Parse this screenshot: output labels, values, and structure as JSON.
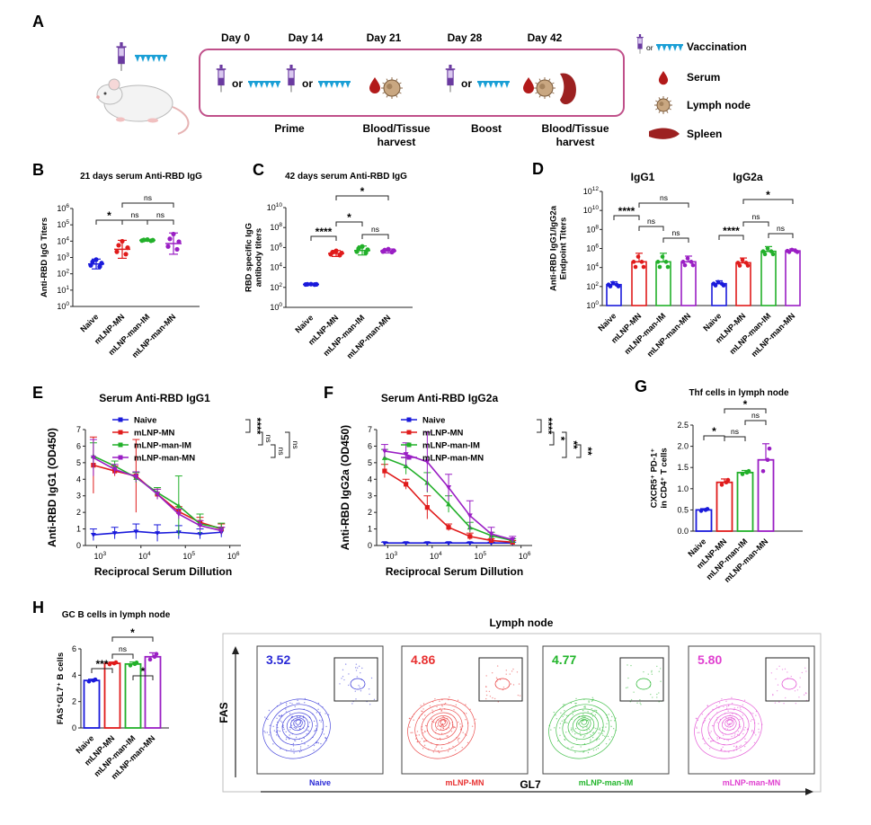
{
  "colors": {
    "naive": "#1a1adb",
    "mn": "#e01b1b",
    "im": "#22b02a",
    "man_mn": "#9a1ec4",
    "box": "#c0508a",
    "syringe": "#6a3aa0",
    "patch": "#1a9fd6",
    "blood": "#b21a1a",
    "spleen": "#9c2121",
    "node": "#a07850"
  },
  "panelA": {
    "label": "A",
    "days": [
      "Day 0",
      "Day 14",
      "Day 21",
      "Day 28",
      "Day 42"
    ],
    "or_text": "or",
    "steps": [
      "Prime",
      "Blood/Tissue",
      "harvest",
      "Boost",
      "Blood/Tissue",
      "harvest"
    ],
    "legend": [
      {
        "icon": "syringe-patch",
        "or_text": "or",
        "label": "Vaccination"
      },
      {
        "icon": "blood-drop",
        "label": "Serum"
      },
      {
        "icon": "lymph-node",
        "label": "Lymph node"
      },
      {
        "icon": "spleen",
        "label": "Spleen"
      }
    ]
  },
  "groups": [
    "Naive",
    "mLNP-MN",
    "mLNP-man-IM",
    "mLNP-man-MN"
  ],
  "chart_data": [
    {
      "panel": "B",
      "type": "scatter",
      "title": "21 days serum Anti-RBD IgG",
      "ylabel": "Anti-RBD IgG Titers",
      "yscale": "log",
      "ylim_exp": [
        0,
        6
      ],
      "categories": [
        "Naive",
        "mLNP-MN",
        "mLNP-man-IM",
        "mLNP-man-MN"
      ],
      "mean_exp": [
        2.6,
        3.5,
        4.05,
        3.85
      ],
      "err_exp": [
        0.3,
        0.55,
        0.05,
        0.65
      ],
      "significance": [
        {
          "pair": [
            1,
            2
          ],
          "label": "*"
        },
        {
          "pair": [
            2,
            3
          ],
          "label": "ns"
        },
        {
          "pair": [
            3,
            4
          ],
          "label": "ns"
        },
        {
          "pair": [
            2,
            4
          ],
          "label": "ns"
        }
      ]
    },
    {
      "panel": "C",
      "type": "scatter",
      "title": "42 days serum Anti-RBD IgG",
      "ylabel": [
        "RBD specific IgG",
        "antibody titers"
      ],
      "yscale": "log",
      "ylim_exp": [
        0,
        10
      ],
      "categories": [
        "Naive",
        "mLNP-MN",
        "mLNP-man-IM",
        "mLNP-man-MN"
      ],
      "mean_exp": [
        2.3,
        5.4,
        5.7,
        5.65
      ],
      "err_exp": [
        0.03,
        0.3,
        0.45,
        0.2
      ],
      "significance": [
        {
          "pair": [
            1,
            2
          ],
          "label": "****"
        },
        {
          "pair": [
            2,
            3
          ],
          "label": "*"
        },
        {
          "pair": [
            3,
            4
          ],
          "label": "ns"
        },
        {
          "pair": [
            2,
            4
          ],
          "label": "*"
        }
      ]
    },
    {
      "panel": "D",
      "type": "bar",
      "ylabel": [
        "Anti-RBD IgG1/IgG2a",
        "Endpoint Titers"
      ],
      "yscale": "log",
      "ylim_exp": [
        0,
        12
      ],
      "groups_sets": [
        "IgG1",
        "IgG2a"
      ],
      "categories": [
        "Naive",
        "mLNP-MN",
        "mLNP-man-IM",
        "mLNP-man-MN"
      ],
      "series": [
        {
          "name": "IgG1",
          "mean_exp": [
            2.2,
            4.6,
            4.6,
            4.6
          ],
          "err_exp": [
            0.3,
            0.9,
            0.9,
            0.6
          ]
        },
        {
          "name": "IgG2a",
          "mean_exp": [
            2.3,
            4.5,
            5.7,
            5.75
          ],
          "err_exp": [
            0.3,
            0.5,
            0.5,
            0.2
          ]
        }
      ],
      "significance": [
        {
          "set": 0,
          "pair": [
            1,
            2
          ],
          "label": "****"
        },
        {
          "set": 0,
          "pair": [
            2,
            3
          ],
          "label": "ns"
        },
        {
          "set": 0,
          "pair": [
            3,
            4
          ],
          "label": "ns"
        },
        {
          "set": 0,
          "pair": [
            2,
            4
          ],
          "label": "ns"
        },
        {
          "set": 1,
          "pair": [
            1,
            2
          ],
          "label": "****"
        },
        {
          "set": 1,
          "pair": [
            2,
            3
          ],
          "label": "ns"
        },
        {
          "set": 1,
          "pair": [
            3,
            4
          ],
          "label": "ns"
        },
        {
          "set": 1,
          "pair": [
            2,
            4
          ],
          "label": "*"
        }
      ]
    },
    {
      "panel": "E",
      "type": "line",
      "title": "Serum Anti-RBD IgG1",
      "xlabel": "Reciprocal Serum Dillution",
      "ylabel": "Anti-RBD IgG1 (OD450)",
      "xscale": "log",
      "xlim_exp": [
        2.75,
        6.25
      ],
      "ylim": [
        0,
        7
      ],
      "x_exp": [
        2.93,
        3.41,
        3.89,
        4.37,
        4.85,
        5.33,
        5.81
      ],
      "series": [
        {
          "name": "Naive",
          "y": [
            0.65,
            0.75,
            0.85,
            0.75,
            0.8,
            0.7,
            0.8
          ],
          "err": [
            0.35,
            0.35,
            0.45,
            0.5,
            0.4,
            0.3,
            0.3
          ]
        },
        {
          "name": "mLNP-MN",
          "y": [
            4.85,
            4.5,
            4.2,
            3.1,
            2.05,
            1.4,
            1.0
          ],
          "err": [
            1.7,
            0.3,
            2.2,
            0.3,
            0.3,
            0.3,
            0.3
          ]
        },
        {
          "name": "mLNP-man-IM",
          "y": [
            5.4,
            4.8,
            4.1,
            3.2,
            2.4,
            1.3,
            1.05
          ],
          "err": [
            0.8,
            0.3,
            0.3,
            0.3,
            1.8,
            0.6,
            0.3
          ]
        },
        {
          "name": "mLNP-man-MN",
          "y": [
            5.3,
            4.6,
            4.15,
            3.1,
            1.9,
            1.2,
            0.9
          ],
          "err": [
            1.1,
            0.3,
            0.3,
            0.3,
            0.3,
            0.3,
            0.2
          ]
        }
      ],
      "significance": [
        {
          "pair": [
            0,
            1
          ],
          "label": "****"
        },
        {
          "pair": [
            1,
            2
          ],
          "label": "ns"
        },
        {
          "pair": [
            2,
            3
          ],
          "label": "ns"
        },
        {
          "pair": [
            1,
            3
          ],
          "label": "ns"
        }
      ]
    },
    {
      "panel": "F",
      "type": "line",
      "title": "Serum Anti-RBD IgG2a",
      "xlabel": "Reciprocal Serum Dillution",
      "ylabel": "Anti-RBD IgG2a (OD450)",
      "xscale": "log",
      "xlim_exp": [
        2.75,
        6.25
      ],
      "ylim": [
        0,
        7
      ],
      "x_exp": [
        2.93,
        3.41,
        3.89,
        4.37,
        4.85,
        5.33,
        5.81
      ],
      "series": [
        {
          "name": "Naive",
          "y": [
            0.15,
            0.15,
            0.15,
            0.15,
            0.15,
            0.15,
            0.15
          ],
          "err": [
            0.05,
            0.05,
            0.05,
            0.05,
            0.05,
            0.05,
            0.05
          ]
        },
        {
          "name": "mLNP-MN",
          "y": [
            4.5,
            3.7,
            2.3,
            1.1,
            0.55,
            0.3,
            0.2
          ],
          "err": [
            0.4,
            0.3,
            0.7,
            0.2,
            0.2,
            0.1,
            0.1
          ]
        },
        {
          "name": "mLNP-man-IM",
          "y": [
            5.3,
            4.8,
            3.8,
            2.5,
            1.1,
            0.6,
            0.3
          ],
          "err": [
            0.5,
            0.5,
            0.6,
            0.5,
            0.3,
            0.2,
            0.1
          ]
        },
        {
          "name": "mLNP-man-MN",
          "y": [
            5.7,
            5.5,
            5.05,
            3.5,
            1.8,
            0.7,
            0.35
          ],
          "err": [
            0.4,
            0.7,
            1.8,
            0.8,
            0.9,
            0.4,
            0.2
          ]
        }
      ],
      "significance": [
        {
          "pair": [
            0,
            1
          ],
          "label": "****"
        },
        {
          "pair": [
            1,
            2
          ],
          "label": "*"
        },
        {
          "pair": [
            1,
            3
          ],
          "label": "**"
        },
        {
          "pair": [
            2,
            3
          ],
          "label": "**"
        }
      ]
    },
    {
      "panel": "G",
      "type": "bar",
      "title": "Thf cells in lymph node",
      "ylabel": [
        "CXCR5⁺ PD-1⁺",
        "in CD4⁺ T cells"
      ],
      "ylim": [
        0,
        2.5
      ],
      "yticks": [
        "0.0",
        "0.5",
        "1.0",
        "1.5",
        "2.0",
        "2.5"
      ],
      "categories": [
        "Naive",
        "mLNP-MN",
        "mLNP-man-IM",
        "mLNP-man-MN"
      ],
      "values": [
        0.5,
        1.15,
        1.38,
        1.68
      ],
      "err": [
        0.03,
        0.08,
        0.05,
        0.38
      ],
      "significance": [
        {
          "pair": [
            1,
            2
          ],
          "label": "*"
        },
        {
          "pair": [
            2,
            3
          ],
          "label": "ns"
        },
        {
          "pair": [
            3,
            4
          ],
          "label": "ns"
        },
        {
          "pair": [
            2,
            4
          ],
          "label": "*"
        }
      ]
    },
    {
      "panel": "H",
      "type": "bar",
      "title": "GC B cells in lymph node",
      "ylabel": "FAS⁺GL7⁺ B cells",
      "ylim": [
        0,
        6
      ],
      "yticks": [
        "0",
        "2",
        "4",
        "6"
      ],
      "categories": [
        "Naive",
        "mLNP-MN",
        "mLNP-man-IM",
        "mLNP-man-MN"
      ],
      "values": [
        3.6,
        4.9,
        4.85,
        5.4
      ],
      "err": [
        0.1,
        0.1,
        0.15,
        0.3
      ],
      "significance": [
        {
          "pair": [
            1,
            2
          ],
          "label": "***"
        },
        {
          "pair": [
            2,
            3
          ],
          "label": "ns"
        },
        {
          "pair": [
            3,
            4
          ],
          "label": "*"
        },
        {
          "pair": [
            2,
            4
          ],
          "label": "*"
        }
      ]
    }
  ],
  "flow": {
    "panel": "H",
    "title": "Lymph node",
    "ylabel": "FAS",
    "xlabel": "GL7",
    "plots": [
      {
        "pct": "3.52",
        "label": "Naive",
        "color": "#2a2ad6"
      },
      {
        "pct": "4.86",
        "label": "mLNP-MN",
        "color": "#e83030"
      },
      {
        "pct": "4.77",
        "label": "mLNP-man-IM",
        "color": "#21b52a"
      },
      {
        "pct": "5.80",
        "label": "mLNP-man-MN",
        "color": "#e040d0"
      }
    ]
  }
}
